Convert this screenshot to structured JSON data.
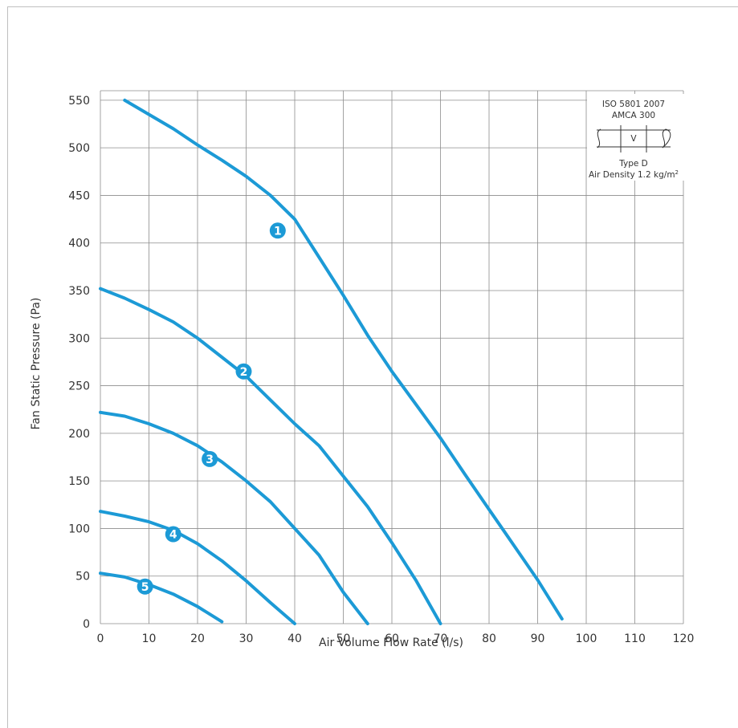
{
  "chart_data": {
    "type": "line",
    "xlabel": "Air Volume Flow Rate (l/s)",
    "ylabel": "Fan Static Pressure (Pa)",
    "xlim": [
      0,
      120
    ],
    "ylim": [
      0,
      550
    ],
    "x_ticks": [
      0,
      10,
      20,
      30,
      40,
      50,
      60,
      70,
      80,
      90,
      100,
      110,
      120
    ],
    "y_ticks": [
      0,
      50,
      100,
      150,
      200,
      250,
      300,
      350,
      400,
      450,
      500,
      550
    ],
    "grid": true,
    "series_color": "#1c9ad6",
    "series": [
      {
        "name": "1",
        "label_at": [
          36.5,
          413
        ],
        "points": [
          [
            5,
            550
          ],
          [
            10,
            535
          ],
          [
            15,
            520
          ],
          [
            20,
            503
          ],
          [
            25,
            487
          ],
          [
            30,
            470
          ],
          [
            35,
            450
          ],
          [
            40,
            425
          ],
          [
            45,
            385
          ],
          [
            50,
            345
          ],
          [
            55,
            303
          ],
          [
            60,
            265
          ],
          [
            65,
            230
          ],
          [
            70,
            195
          ],
          [
            75,
            157
          ],
          [
            80,
            120
          ],
          [
            85,
            83
          ],
          [
            90,
            46
          ],
          [
            95,
            5
          ]
        ]
      },
      {
        "name": "2",
        "label_at": [
          29.5,
          265
        ],
        "points": [
          [
            0,
            352
          ],
          [
            5,
            342
          ],
          [
            10,
            330
          ],
          [
            15,
            317
          ],
          [
            20,
            300
          ],
          [
            25,
            280
          ],
          [
            30,
            260
          ],
          [
            35,
            235
          ],
          [
            40,
            210
          ],
          [
            45,
            187
          ],
          [
            50,
            155
          ],
          [
            55,
            123
          ],
          [
            60,
            85
          ],
          [
            65,
            45
          ],
          [
            70,
            0
          ]
        ]
      },
      {
        "name": "3",
        "label_at": [
          22.5,
          173
        ],
        "points": [
          [
            0,
            222
          ],
          [
            5,
            218
          ],
          [
            10,
            210
          ],
          [
            15,
            200
          ],
          [
            20,
            187
          ],
          [
            25,
            170
          ],
          [
            30,
            150
          ],
          [
            35,
            128
          ],
          [
            40,
            100
          ],
          [
            45,
            72
          ],
          [
            50,
            33
          ],
          [
            55,
            0
          ]
        ]
      },
      {
        "name": "4",
        "label_at": [
          15,
          94
        ],
        "points": [
          [
            0,
            118
          ],
          [
            5,
            113
          ],
          [
            10,
            107
          ],
          [
            15,
            98
          ],
          [
            20,
            84
          ],
          [
            25,
            66
          ],
          [
            30,
            45
          ],
          [
            35,
            22
          ],
          [
            40,
            0
          ]
        ]
      },
      {
        "name": "5",
        "label_at": [
          9.2,
          39
        ],
        "points": [
          [
            0,
            53
          ],
          [
            5,
            49
          ],
          [
            10,
            41
          ],
          [
            15,
            31
          ],
          [
            20,
            18
          ],
          [
            25,
            2
          ]
        ]
      }
    ]
  },
  "legend_box": {
    "standard": "ISO 5801 2007",
    "amca": "AMCA 300",
    "duct_label": "V",
    "type": "Type D",
    "density_label": "Air Density 1.2 kg/m",
    "density_sup": "2"
  }
}
